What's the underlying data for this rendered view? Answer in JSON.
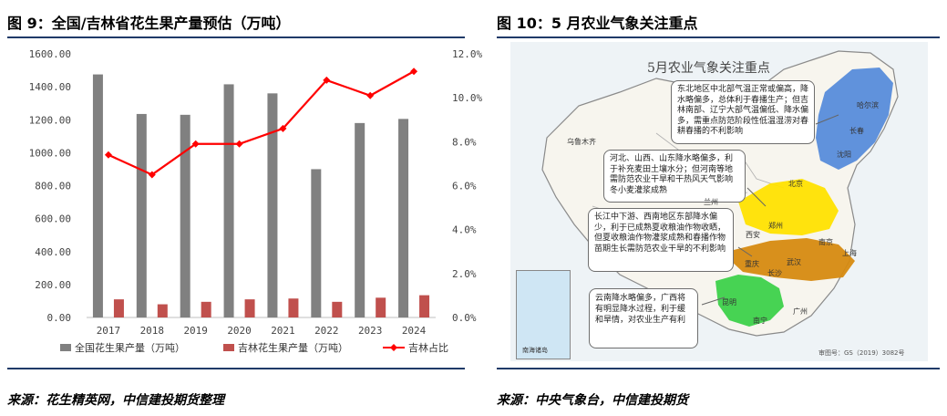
{
  "left_figure": {
    "title": "图 9：全国/吉林省花生果产量预估（万吨）",
    "source": "来源：花生精英网，中信建投期货整理"
  },
  "right_figure": {
    "title": "图 10：5 月农业气象关注重点",
    "source": "来源：中央气象台，中信建投期货",
    "map": {
      "title": "5月农业气象关注重点",
      "annotations": [
        {
          "id": "northeast",
          "text": "东北地区中北部气温正常或偏高，降水略偏多，总体利于春播生产；但吉林南部、辽宁大部气温偏低、降水偏多，需重点防范阶段性低温湿涝对春耕春播的不利影响"
        },
        {
          "id": "north",
          "text": "河北、山西、山东降水略偏多，利于补充麦田土壤水分；但河南等地需防范农业干旱和干热风天气影响冬小麦灌浆成熟"
        },
        {
          "id": "yangtze",
          "text": "长江中下游、西南地区东部降水偏少，利于已成熟夏收粮油作物收晒，但夏收粮油作物灌浆成熟和春播作物苗期生长需防范农业干旱的不利影响"
        },
        {
          "id": "south",
          "text": "云南降水略偏多，广西将有明显降水过程，利于缓和旱情，对农业生产有利"
        }
      ],
      "place_labels": [
        "乌鲁木齐",
        "北京",
        "郑州",
        "武汉",
        "长沙",
        "重庆",
        "广州",
        "南宁",
        "昆明",
        "兰州",
        "西安",
        "南京",
        "上海",
        "沈阳",
        "哈尔滨",
        "长春"
      ],
      "inset_label": "南海诸岛",
      "map_number": "审图号：GS（2019）3082号"
    }
  },
  "chart_data": {
    "type": "bar",
    "categories": [
      "2017",
      "2018",
      "2019",
      "2020",
      "2021",
      "2022",
      "2023",
      "2024"
    ],
    "series": [
      {
        "name": "全国花生果产量（万吨）",
        "type": "bar",
        "axis": "left",
        "color": "#808080",
        "values": [
          1475,
          1235,
          1230,
          1415,
          1360,
          900,
          1180,
          1205
        ]
      },
      {
        "name": "吉林花生果产量（万吨）",
        "type": "bar",
        "axis": "left",
        "color": "#c0504d",
        "values": [
          110,
          80,
          95,
          110,
          115,
          95,
          120,
          135
        ]
      },
      {
        "name": "吉林占比",
        "type": "line",
        "axis": "right",
        "color": "#ff0000",
        "values": [
          7.4,
          6.5,
          7.9,
          7.9,
          8.6,
          10.8,
          10.1,
          11.2
        ]
      }
    ],
    "left_axis": {
      "min": 0,
      "max": 1600,
      "ticks": [
        "0.00",
        "200.00",
        "400.00",
        "600.00",
        "800.00",
        "1000.00",
        "1200.00",
        "1400.00",
        "1600.00"
      ]
    },
    "right_axis": {
      "min": 0,
      "max": 12,
      "ticks": [
        "0.0%",
        "2.0%",
        "4.0%",
        "6.0%",
        "8.0%",
        "10.0%",
        "12.0%"
      ]
    },
    "grid": false,
    "legend_position": "bottom",
    "title": ""
  }
}
